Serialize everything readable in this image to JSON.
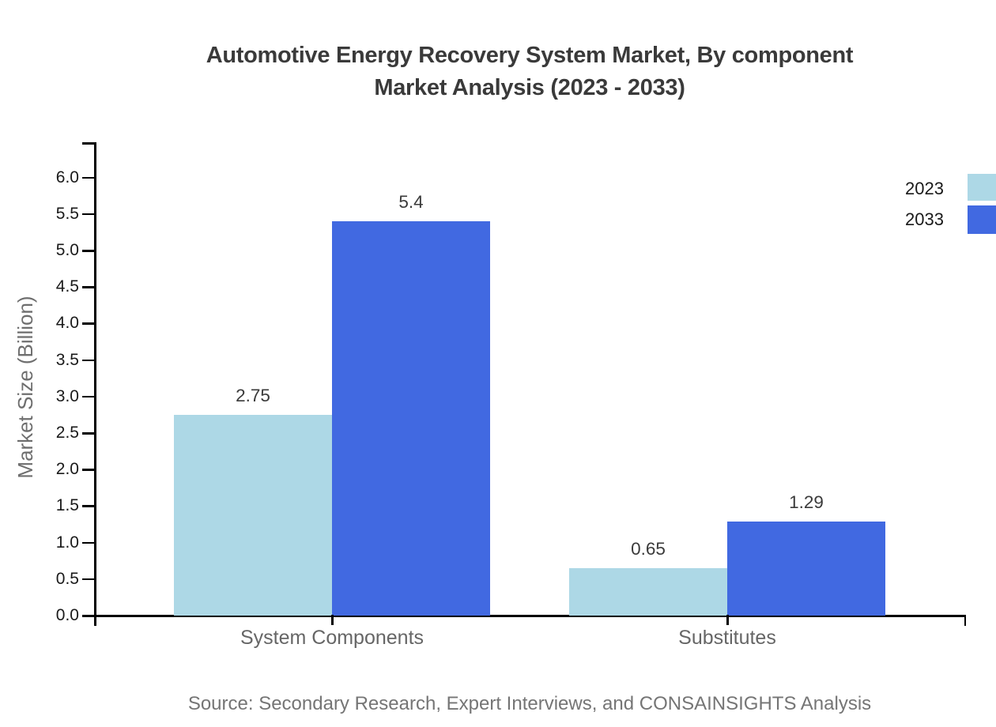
{
  "title": {
    "line1": "Automotive Energy Recovery System Market, By component",
    "line2": "Market Analysis (2023 - 2033)"
  },
  "source": "Source: Secondary Research, Expert Interviews, and CONSAINSIGHTS Analysis",
  "legend": [
    {
      "label": "2023",
      "color": "#ADD8E6"
    },
    {
      "label": "2033",
      "color": "#4169E1"
    }
  ],
  "y_axis": {
    "label": "Market Size (Billion)",
    "ticks": [
      "0.0",
      "0.5",
      "1.0",
      "1.5",
      "2.0",
      "2.5",
      "3.0",
      "3.5",
      "4.0",
      "4.5",
      "5.0",
      "5.5",
      "6.0"
    ]
  },
  "x_axis": {
    "categories": [
      "System Components",
      "Substitutes"
    ]
  },
  "chart_data": {
    "type": "bar",
    "title": "Automotive Energy Recovery System Market, By component Market Analysis (2023 - 2033)",
    "categories": [
      "System Components",
      "Substitutes"
    ],
    "series": [
      {
        "name": "2023",
        "color": "#ADD8E6",
        "values": [
          2.75,
          0.65
        ],
        "labels": [
          "2.75",
          "0.65"
        ]
      },
      {
        "name": "2033",
        "color": "#4169E1",
        "values": [
          5.4,
          1.29
        ],
        "labels": [
          "5.4",
          "1.29"
        ]
      }
    ],
    "xlabel": "",
    "ylabel": "Market Size (Billion)",
    "ylim": [
      0,
      6.5
    ],
    "ytick_step": 0.5,
    "grid": false,
    "legend_position": "right-edge",
    "data_labels": true
  }
}
